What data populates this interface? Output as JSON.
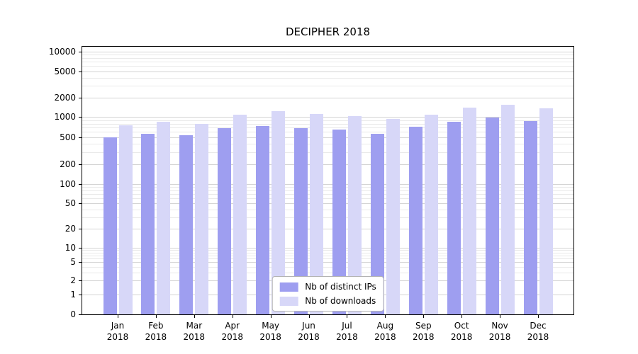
{
  "chart_data": {
    "type": "bar",
    "title": "DECIPHER 2018",
    "categories": [
      "Jan 2018",
      "Feb 2018",
      "Mar 2018",
      "Apr 2018",
      "May 2018",
      "Jun 2018",
      "Jul 2018",
      "Aug 2018",
      "Sep 2018",
      "Oct 2018",
      "Nov 2018",
      "Dec 2018"
    ],
    "series": [
      {
        "name": "Nb of distinct IPs",
        "color": "#9e9ef0",
        "values": [
          500,
          560,
          540,
          690,
          740,
          680,
          660,
          560,
          720,
          850,
          1000,
          880
        ]
      },
      {
        "name": "Nb of downloads",
        "color": "#d7d7f8",
        "values": [
          750,
          850,
          800,
          1100,
          1250,
          1120,
          1050,
          950,
          1100,
          1400,
          1550,
          1380
        ]
      }
    ],
    "xlabel": "",
    "ylabel": "",
    "yticks": [
      0,
      1,
      2,
      5,
      10,
      20,
      50,
      100,
      200,
      500,
      1000,
      2000,
      5000,
      10000
    ],
    "ylim": [
      0,
      14000
    ],
    "yscale": "symlog",
    "grid": true,
    "legend_position": "lower center"
  }
}
